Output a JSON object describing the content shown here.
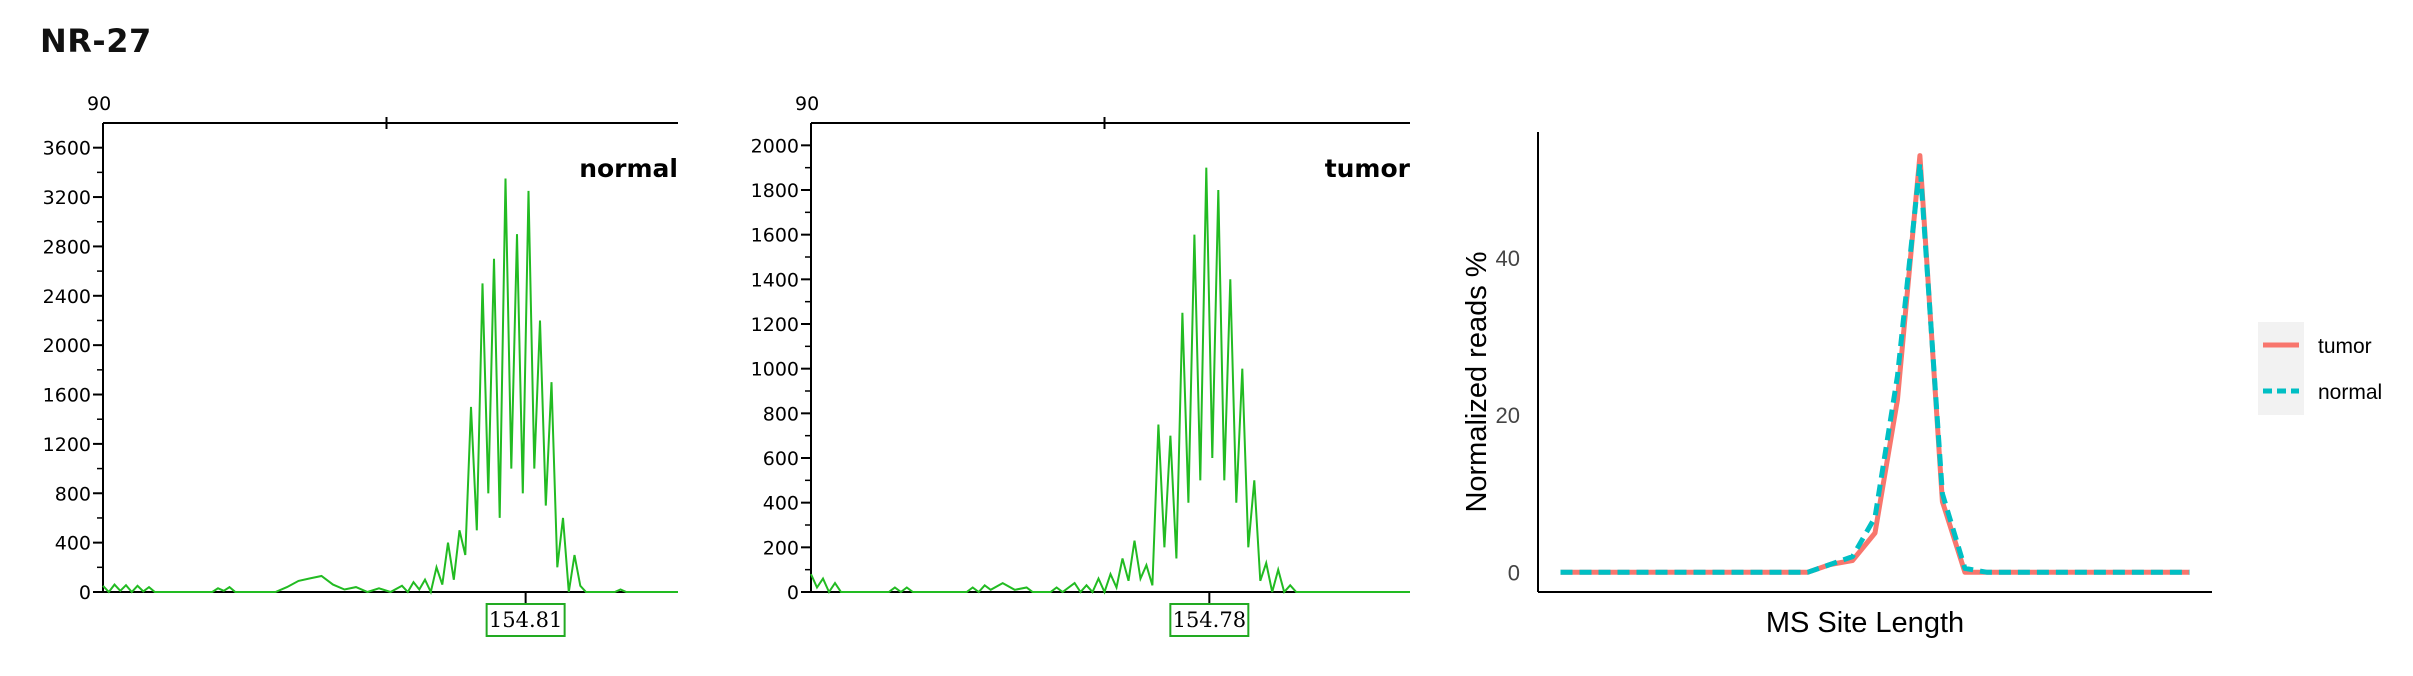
{
  "title": "NR-27",
  "chart_data": [
    {
      "type": "line",
      "panel_label": "normal",
      "top_tick_label": "90",
      "y_ticks": [
        0,
        400,
        800,
        1200,
        1600,
        2000,
        2400,
        2800,
        3200,
        3600
      ],
      "ylim": [
        0,
        3800
      ],
      "xlim": [
        0,
        100
      ],
      "peak_label": "154.81",
      "peak_x": 73.5,
      "color": "#22bb22",
      "points": [
        [
          0,
          50
        ],
        [
          1,
          0
        ],
        [
          2,
          60
        ],
        [
          3,
          10
        ],
        [
          4,
          55
        ],
        [
          5,
          0
        ],
        [
          6,
          50
        ],
        [
          7,
          5
        ],
        [
          8,
          40
        ],
        [
          9,
          0
        ],
        [
          11,
          0
        ],
        [
          19,
          0
        ],
        [
          20,
          30
        ],
        [
          21,
          10
        ],
        [
          22,
          40
        ],
        [
          23,
          0
        ],
        [
          30,
          0
        ],
        [
          32,
          40
        ],
        [
          34,
          90
        ],
        [
          36,
          110
        ],
        [
          38,
          130
        ],
        [
          40,
          60
        ],
        [
          42,
          20
        ],
        [
          44,
          40
        ],
        [
          46,
          0
        ],
        [
          48,
          30
        ],
        [
          50,
          0
        ],
        [
          52,
          50
        ],
        [
          53,
          0
        ],
        [
          54,
          80
        ],
        [
          55,
          20
        ],
        [
          56,
          100
        ],
        [
          57,
          0
        ],
        [
          58,
          200
        ],
        [
          59,
          60
        ],
        [
          60,
          400
        ],
        [
          61,
          100
        ],
        [
          62,
          500
        ],
        [
          63,
          300
        ],
        [
          64,
          1500
        ],
        [
          65,
          500
        ],
        [
          66,
          2500
        ],
        [
          67,
          800
        ],
        [
          68,
          2700
        ],
        [
          69,
          600
        ],
        [
          70,
          3350
        ],
        [
          71,
          1000
        ],
        [
          72,
          2900
        ],
        [
          73,
          800
        ],
        [
          74,
          3250
        ],
        [
          75,
          1000
        ],
        [
          76,
          2200
        ],
        [
          77,
          700
        ],
        [
          78,
          1700
        ],
        [
          79,
          200
        ],
        [
          80,
          600
        ],
        [
          81,
          0
        ],
        [
          82,
          300
        ],
        [
          83,
          50
        ],
        [
          84,
          0
        ],
        [
          89,
          0
        ],
        [
          90,
          20
        ],
        [
          91,
          0
        ],
        [
          100,
          0
        ]
      ]
    },
    {
      "type": "line",
      "panel_label": "tumor",
      "top_tick_label": "90",
      "y_ticks": [
        0,
        200,
        400,
        600,
        800,
        1000,
        1200,
        1400,
        1600,
        1800,
        2000
      ],
      "ylim": [
        0,
        2100
      ],
      "xlim": [
        0,
        100
      ],
      "peak_label": "154.78",
      "peak_x": 66.5,
      "color": "#22bb22",
      "points": [
        [
          0,
          80
        ],
        [
          1,
          20
        ],
        [
          2,
          60
        ],
        [
          3,
          0
        ],
        [
          4,
          40
        ],
        [
          5,
          0
        ],
        [
          13,
          0
        ],
        [
          14,
          20
        ],
        [
          15,
          0
        ],
        [
          16,
          20
        ],
        [
          17,
          0
        ],
        [
          26,
          0
        ],
        [
          27,
          20
        ],
        [
          28,
          0
        ],
        [
          29,
          30
        ],
        [
          30,
          10
        ],
        [
          32,
          40
        ],
        [
          34,
          10
        ],
        [
          36,
          20
        ],
        [
          37,
          0
        ],
        [
          40,
          0
        ],
        [
          41,
          20
        ],
        [
          42,
          0
        ],
        [
          44,
          40
        ],
        [
          45,
          0
        ],
        [
          46,
          30
        ],
        [
          47,
          0
        ],
        [
          48,
          60
        ],
        [
          49,
          0
        ],
        [
          50,
          80
        ],
        [
          51,
          20
        ],
        [
          52,
          150
        ],
        [
          53,
          50
        ],
        [
          54,
          230
        ],
        [
          55,
          60
        ],
        [
          56,
          120
        ],
        [
          57,
          30
        ],
        [
          58,
          750
        ],
        [
          59,
          200
        ],
        [
          60,
          700
        ],
        [
          61,
          150
        ],
        [
          62,
          1250
        ],
        [
          63,
          400
        ],
        [
          64,
          1600
        ],
        [
          65,
          500
        ],
        [
          66,
          1900
        ],
        [
          67,
          600
        ],
        [
          68,
          1800
        ],
        [
          69,
          500
        ],
        [
          70,
          1400
        ],
        [
          71,
          400
        ],
        [
          72,
          1000
        ],
        [
          73,
          200
        ],
        [
          74,
          500
        ],
        [
          75,
          50
        ],
        [
          76,
          130
        ],
        [
          77,
          0
        ],
        [
          78,
          100
        ],
        [
          79,
          0
        ],
        [
          80,
          30
        ],
        [
          81,
          0
        ],
        [
          100,
          0
        ]
      ]
    },
    {
      "type": "line",
      "xlabel": "MS Site Length",
      "ylabel": "Normalized reads %",
      "y_ticks": [
        0,
        20,
        40
      ],
      "ylim": [
        -2.5,
        56
      ],
      "xlim": [
        0,
        30
      ],
      "legend_position": "right",
      "series": [
        {
          "name": "tumor",
          "color": "#f8766d",
          "style": "solid",
          "x": [
            1,
            2,
            3,
            4,
            5,
            6,
            7,
            8,
            9,
            10,
            11,
            12,
            13,
            14,
            15,
            16,
            17,
            18,
            19,
            20,
            21,
            22,
            23,
            24,
            25,
            26,
            27,
            28,
            29
          ],
          "y": [
            0,
            0,
            0,
            0,
            0,
            0,
            0,
            0,
            0,
            0,
            0,
            0,
            1,
            1.5,
            5,
            22,
            53,
            9,
            0,
            0,
            0,
            0,
            0,
            0,
            0,
            0,
            0,
            0,
            0
          ]
        },
        {
          "name": "normal",
          "color": "#00bfc4",
          "style": "dashed",
          "x": [
            1,
            2,
            3,
            4,
            5,
            6,
            7,
            8,
            9,
            10,
            11,
            12,
            13,
            14,
            15,
            16,
            17,
            18,
            19,
            20,
            21,
            22,
            23,
            24,
            25,
            26,
            27,
            28,
            29
          ],
          "y": [
            0,
            0,
            0,
            0,
            0,
            0,
            0,
            0,
            0,
            0,
            0,
            0,
            1,
            2,
            7,
            25,
            52,
            10,
            0.5,
            0,
            0,
            0,
            0,
            0,
            0,
            0,
            0,
            0,
            0
          ]
        }
      ]
    }
  ]
}
